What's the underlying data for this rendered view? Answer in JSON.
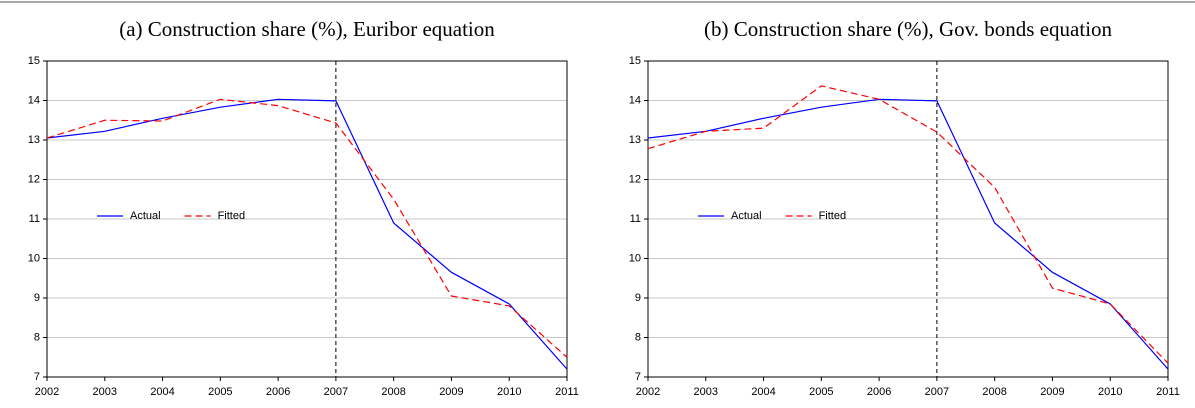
{
  "chart_data": [
    {
      "type": "line",
      "title": "(a) Construction share (%), Euribor equation",
      "x": [
        2002,
        2003,
        2004,
        2005,
        2006,
        2007,
        2008,
        2009,
        2010,
        2011
      ],
      "series": [
        {
          "name": "Actual",
          "color": "#0000ff",
          "dash": false,
          "values": [
            13.05,
            13.22,
            13.55,
            13.83,
            14.03,
            13.99,
            10.9,
            9.65,
            8.85,
            7.2
          ]
        },
        {
          "name": "Fitted",
          "color": "#ff0000",
          "dash": true,
          "values": [
            13.05,
            13.5,
            13.48,
            14.03,
            13.87,
            13.43,
            11.5,
            9.05,
            8.8,
            7.5
          ]
        }
      ],
      "xlim": [
        2002,
        2011
      ],
      "xticks": [
        2002,
        2003,
        2004,
        2005,
        2006,
        2007,
        2008,
        2009,
        2010,
        2011
      ],
      "ylim": [
        7,
        15
      ],
      "yticks": [
        7,
        8,
        9,
        10,
        11,
        12,
        13,
        14,
        15
      ],
      "vline": 2007,
      "grid": true,
      "legend": "center left"
    },
    {
      "type": "line",
      "title": "(b) Construction share (%), Gov. bonds equation",
      "x": [
        2002,
        2003,
        2004,
        2005,
        2006,
        2007,
        2008,
        2009,
        2010,
        2011
      ],
      "series": [
        {
          "name": "Actual",
          "color": "#0000ff",
          "dash": false,
          "values": [
            13.05,
            13.22,
            13.55,
            13.83,
            14.03,
            13.99,
            10.9,
            9.65,
            8.85,
            7.2
          ]
        },
        {
          "name": "Fitted",
          "color": "#ff0000",
          "dash": true,
          "values": [
            12.78,
            13.22,
            13.3,
            14.37,
            14.03,
            13.2,
            11.8,
            9.25,
            8.85,
            7.35
          ]
        }
      ],
      "xlim": [
        2002,
        2011
      ],
      "xticks": [
        2002,
        2003,
        2004,
        2005,
        2006,
        2007,
        2008,
        2009,
        2010,
        2011
      ],
      "ylim": [
        7,
        15
      ],
      "yticks": [
        7,
        8,
        9,
        10,
        11,
        12,
        13,
        14,
        15
      ],
      "vline": 2007,
      "grid": true,
      "legend": "center left"
    }
  ]
}
